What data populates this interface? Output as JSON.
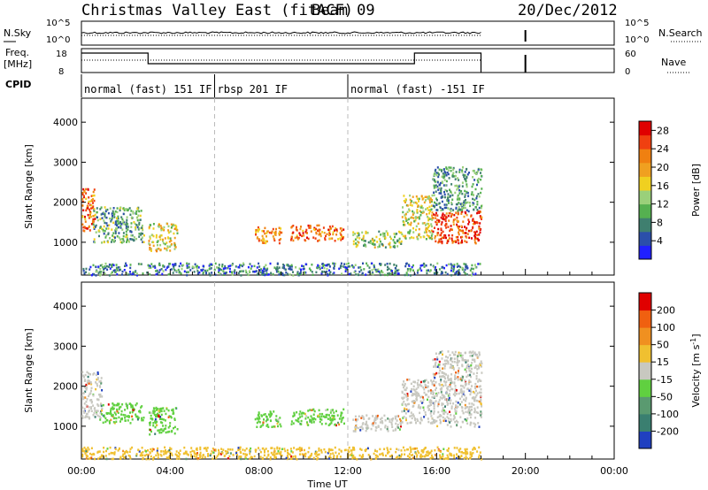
{
  "header": {
    "title": "Christmas Valley East (fitACF)",
    "beam": "Beam 09",
    "date": "20/Dec/2012"
  },
  "noise_panel": {
    "left_label": "N.Sky",
    "right_label": "N.Search",
    "left_ticks": [
      "10^5",
      "10^0"
    ],
    "right_ticks": [
      "10^5",
      "10^0"
    ]
  },
  "freq_panel": {
    "left_label_top": "Freq.",
    "left_label_bottom": "[MHz]",
    "left_ticks": [
      "18",
      "8"
    ],
    "right_label": "Nave",
    "right_ticks": [
      "60",
      "0"
    ]
  },
  "cpid": {
    "label": "CPID",
    "segments": [
      {
        "start_hour": 0,
        "end_hour": 6,
        "name": "normal (fast) 151 IF"
      },
      {
        "start_hour": 6,
        "end_hour": 12,
        "name": "rbsp 201 IF"
      },
      {
        "start_hour": 12,
        "end_hour": 24,
        "name": "normal (fast) -151 IF"
      }
    ]
  },
  "chart_data": [
    {
      "type": "heatmap",
      "quantity": "power",
      "xlabel": "",
      "ylabel": "Slant Range [km]",
      "xlim_hours": [
        0,
        24
      ],
      "ylim": [
        180,
        4600
      ],
      "yticks": [
        1000,
        2000,
        3000,
        4000
      ],
      "colorbar_label": "Power [dB]",
      "colorbar_ticks": [
        "4",
        "8",
        "12",
        "16",
        "20",
        "24",
        "28"
      ],
      "colorbar_range": [
        0,
        30
      ],
      "colorbar_colors": [
        "#2020ff",
        "#2b4faa",
        "#3f7f6f",
        "#55b050",
        "#9ad07a",
        "#f0d020",
        "#f0a020",
        "#f08010",
        "#f04010",
        "#e00000"
      ],
      "echo_regions": [
        {
          "t0": 0.0,
          "t1": 0.6,
          "r0": 1300,
          "r1": 2400,
          "level": 0.75
        },
        {
          "t0": 0.5,
          "t1": 2.8,
          "r0": 1000,
          "r1": 1900,
          "level": 0.35
        },
        {
          "t0": 3.0,
          "t1": 4.3,
          "r0": 800,
          "r1": 1500,
          "level": 0.55
        },
        {
          "t0": 7.8,
          "t1": 9.0,
          "r0": 1000,
          "r1": 1400,
          "level": 0.7
        },
        {
          "t0": 9.4,
          "t1": 11.8,
          "r0": 1050,
          "r1": 1450,
          "level": 0.75
        },
        {
          "t0": 12.2,
          "t1": 14.4,
          "r0": 900,
          "r1": 1300,
          "level": 0.45
        },
        {
          "t0": 14.4,
          "t1": 15.8,
          "r0": 1100,
          "r1": 2200,
          "level": 0.5
        },
        {
          "t0": 15.8,
          "t1": 18.0,
          "r0": 1000,
          "r1": 1800,
          "level": 0.85
        },
        {
          "t0": 15.8,
          "t1": 18.0,
          "r0": 1800,
          "r1": 2900,
          "level": 0.3
        },
        {
          "t0": 0.0,
          "t1": 18.0,
          "r0": 200,
          "r1": 500,
          "level": 0.25
        }
      ]
    },
    {
      "type": "heatmap",
      "quantity": "velocity",
      "xlabel": "Time UT",
      "ylabel": "Slant Range [km]",
      "xlim_hours": [
        0,
        24
      ],
      "ylim": [
        180,
        4600
      ],
      "yticks": [
        1000,
        2000,
        3000,
        4000
      ],
      "xtick_labels": [
        "00:00",
        "04:00",
        "08:00",
        "12:00",
        "16:00",
        "20:00",
        "00:00"
      ],
      "colorbar_label": "Velocity [m s^-1]",
      "colorbar_ticks": [
        "200",
        "100",
        "50",
        "15",
        "-15",
        "-50",
        "-100",
        "-200"
      ],
      "colorbar_colors": [
        "#2040c0",
        "#3a7f70",
        "#5a9a70",
        "#60d040",
        "#c8c8c0",
        "#f0c030",
        "#f09020",
        "#f06010",
        "#e00000"
      ],
      "echo_regions": [
        {
          "t0": 0.0,
          "t1": 0.9,
          "r0": 1200,
          "r1": 2400,
          "color": "#c8c8c0"
        },
        {
          "t0": 0.8,
          "t1": 2.8,
          "r0": 1100,
          "r1": 1600,
          "color": "#60d040"
        },
        {
          "t0": 3.0,
          "t1": 4.3,
          "r0": 800,
          "r1": 1500,
          "color": "#60d040"
        },
        {
          "t0": 7.8,
          "t1": 9.0,
          "r0": 1000,
          "r1": 1400,
          "color": "#60d040"
        },
        {
          "t0": 9.4,
          "t1": 11.8,
          "r0": 1050,
          "r1": 1450,
          "color": "#60d040"
        },
        {
          "t0": 12.2,
          "t1": 14.4,
          "r0": 900,
          "r1": 1300,
          "color": "#c8c8c0"
        },
        {
          "t0": 14.4,
          "t1": 15.8,
          "r0": 1100,
          "r1": 2200,
          "color": "#c8c8c0"
        },
        {
          "t0": 15.8,
          "t1": 18.0,
          "r0": 1000,
          "r1": 2900,
          "color": "#c8c8c0"
        },
        {
          "t0": 0.0,
          "t1": 18.0,
          "r0": 200,
          "r1": 500,
          "color": "#f0c030"
        }
      ]
    }
  ]
}
